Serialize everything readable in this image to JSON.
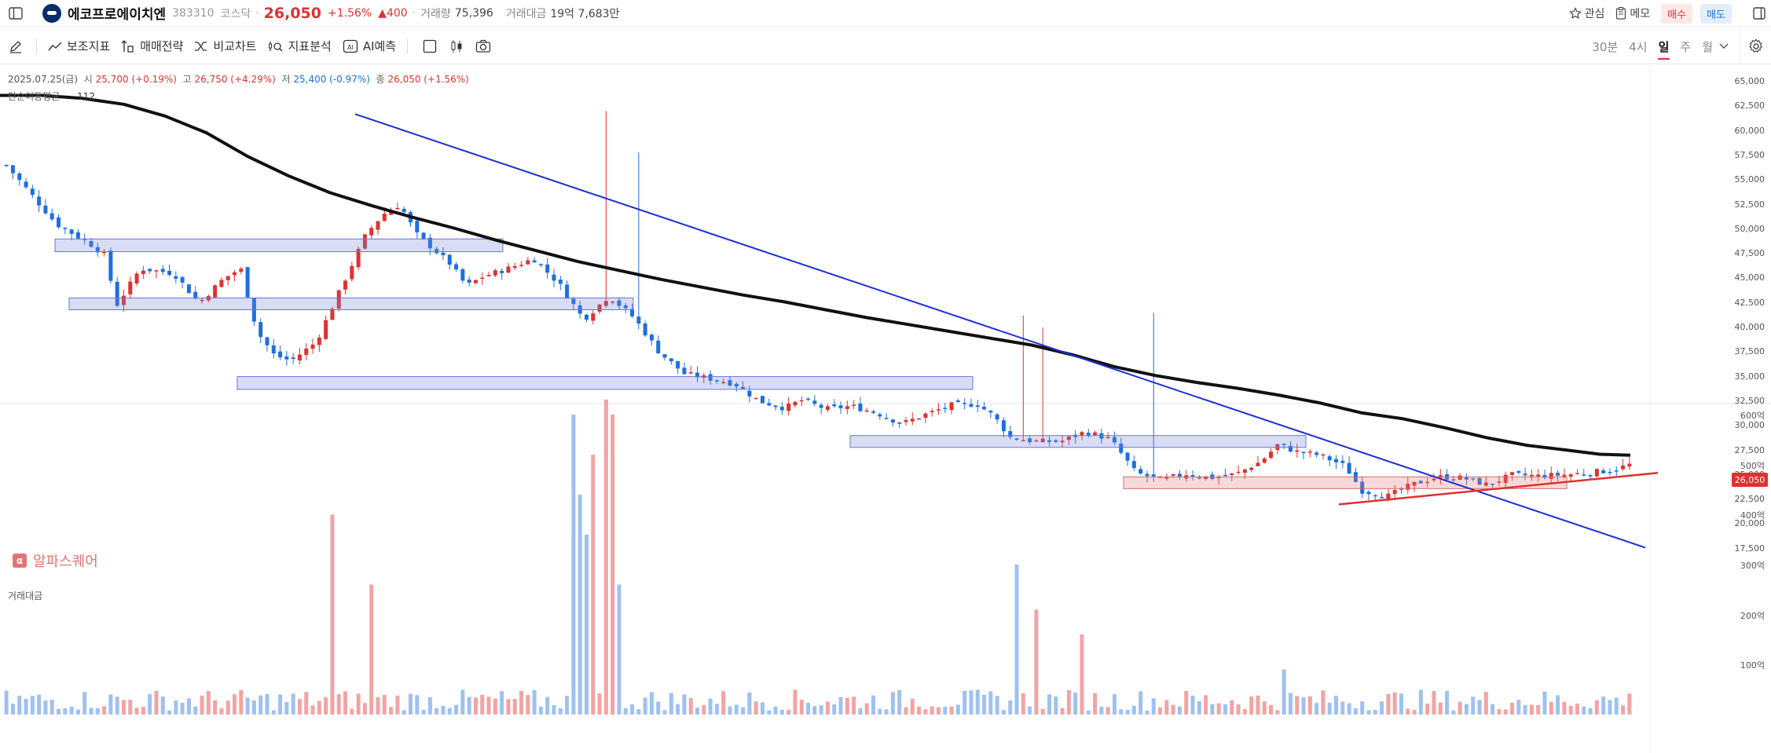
{
  "header": {
    "name": "에코프로에이치엔",
    "code": "383310",
    "market": "코스닥",
    "price": "26,050",
    "change_pct": "+1.56%",
    "change_abs": "▲400",
    "volume_label": "거래량",
    "volume_value": "75,396",
    "amount_label": "거래대금",
    "amount_value": "19억 7,683만",
    "watch_label": "관심",
    "memo_label": "메모",
    "buy_label": "매수",
    "sell_label": "매도"
  },
  "toolbar": {
    "indicator_label": "보조지표",
    "strategy_label": "매매전략",
    "compare_label": "비교차트",
    "analysis_label": "지표분석",
    "ai_label": "AI예측",
    "periods": [
      "30분",
      "4시",
      "일",
      "주",
      "월"
    ],
    "active_period": "일"
  },
  "ohlc": {
    "date": "2025.07.25(금)",
    "open_label": "시",
    "open": "25,700 (+0.19%)",
    "high_label": "고",
    "high": "26,750 (+4.29%)",
    "low_label": "저",
    "low": "25,400 (-0.97%)",
    "close_label": "종",
    "close": "26,050 (+1.56%)"
  },
  "ma": {
    "label": "단순이동평균",
    "period": "112"
  },
  "watermark": "알파스퀘어",
  "volume_panel_label": "거래대금",
  "price_tag": "26,050",
  "colors": {
    "up": "#e03131",
    "down": "#1c6fe0",
    "ma": "#111111",
    "trend": "#1a2fd6",
    "support": "#e03131"
  },
  "chart_data": {
    "type": "candlestick",
    "price_axis_ticks": [
      "65,000",
      "62,500",
      "60,000",
      "57,500",
      "55,000",
      "52,500",
      "50,000",
      "47,500",
      "45,000",
      "42,500",
      "40,000",
      "37,500",
      "35,000",
      "32,500",
      "30,000",
      "27,500",
      "25,000",
      "22,500",
      "20,000",
      "17,500"
    ],
    "volume_axis_ticks": [
      "600억",
      "500억",
      "400억",
      "300억",
      "200억",
      "100억"
    ],
    "ylim": [
      17500,
      65000
    ],
    "volume_unit": "억",
    "ma_path": [
      [
        0,
        63600
      ],
      [
        8,
        63600
      ],
      [
        16,
        63300
      ],
      [
        24,
        62700
      ],
      [
        32,
        61500
      ],
      [
        40,
        59800
      ],
      [
        48,
        57400
      ],
      [
        56,
        55400
      ],
      [
        64,
        53700
      ],
      [
        72,
        52400
      ],
      [
        80,
        51200
      ],
      [
        88,
        50100
      ],
      [
        96,
        48900
      ],
      [
        104,
        47800
      ],
      [
        112,
        46700
      ],
      [
        120,
        45800
      ],
      [
        128,
        44900
      ],
      [
        136,
        44100
      ],
      [
        144,
        43300
      ],
      [
        152,
        42600
      ],
      [
        160,
        41800
      ],
      [
        168,
        41000
      ],
      [
        176,
        40300
      ],
      [
        184,
        39600
      ],
      [
        192,
        38900
      ],
      [
        200,
        38200
      ],
      [
        208,
        37200
      ],
      [
        216,
        36000
      ],
      [
        224,
        35100
      ],
      [
        232,
        34400
      ],
      [
        240,
        33800
      ],
      [
        248,
        33100
      ],
      [
        256,
        32300
      ],
      [
        264,
        31300
      ],
      [
        272,
        30700
      ],
      [
        280,
        29800
      ],
      [
        288,
        28800
      ],
      [
        296,
        28000
      ],
      [
        304,
        27500
      ],
      [
        310,
        27100
      ],
      [
        316,
        27000
      ]
    ],
    "resistance_zones": [
      [
        47700,
        49000
      ],
      [
        41800,
        43000
      ],
      [
        33700,
        35000
      ],
      [
        27800,
        29000
      ]
    ],
    "support_zone": [
      23600,
      24800
    ]
  }
}
